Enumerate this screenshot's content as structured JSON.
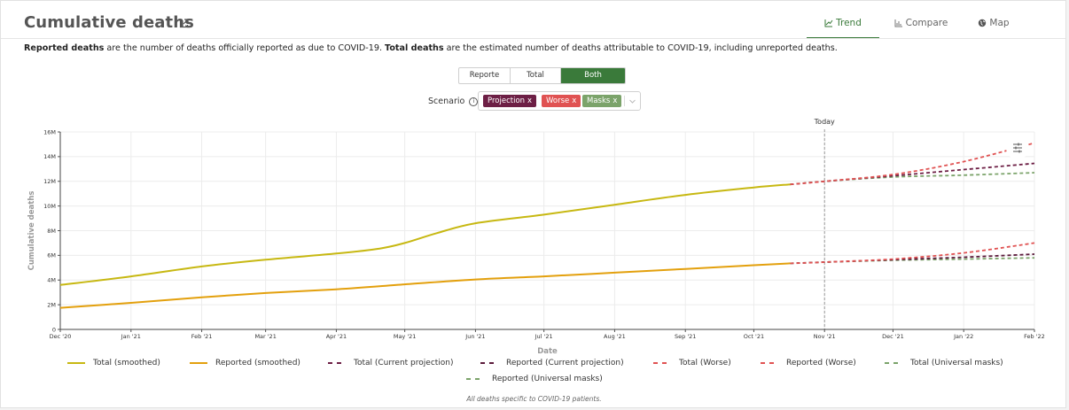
{
  "header": {
    "title": "Cumulative deaths",
    "tabs": [
      {
        "label": "Trend",
        "icon": "trend-icon"
      },
      {
        "label": "Compare",
        "icon": "compare-icon"
      },
      {
        "label": "Map",
        "icon": "globe-icon"
      }
    ]
  },
  "description": {
    "reported_bold": "Reported deaths",
    "reported_text": " are the number of deaths officially reported as due to COVID-19. ",
    "total_bold": "Total deaths",
    "total_text": " are the estimated number of deaths attributable to COVID-19, including unreported deaths."
  },
  "toggle": {
    "options": [
      "Reporte",
      "Total",
      "Both"
    ],
    "selected": "Both"
  },
  "scenario": {
    "label": "Scenario",
    "chips": [
      {
        "label": "Projection",
        "color": "#6d1f45"
      },
      {
        "label": "Worse",
        "color": "#e05252"
      },
      {
        "label": "Masks",
        "color": "#7ba36a"
      }
    ]
  },
  "chart_data": {
    "type": "line",
    "annotation": "Today",
    "xlabel": "Date",
    "ylabel": "Cumulative deaths",
    "x_ticks": [
      "Dec '20",
      "Jan '21",
      "Feb '21",
      "Mar '21",
      "Apr '21",
      "May '21",
      "Jun '21",
      "Jul '21",
      "Aug '21",
      "Sep '21",
      "Oct '21",
      "Nov '21",
      "Dec '21",
      "Jan '22",
      "Feb '22"
    ],
    "y_ticks": [
      "0",
      "2M",
      "4M",
      "6M",
      "8M",
      "10M",
      "12M",
      "14M",
      "16M"
    ],
    "ylim": [
      0,
      16000000
    ],
    "grid": true,
    "legend_position": "bottom",
    "series": [
      {
        "name": "Total (smoothed)",
        "color": "#c7b812",
        "style": "solid",
        "x": [
          "2020-12-01",
          "2021-01-01",
          "2021-02-01",
          "2021-03-01",
          "2021-04-01",
          "2021-04-20",
          "2021-05-01",
          "2021-05-15",
          "2021-06-01",
          "2021-07-01",
          "2021-08-01",
          "2021-09-01",
          "2021-10-01",
          "2021-10-17"
        ],
        "y": [
          3600000,
          4300000,
          5100000,
          5650000,
          6150000,
          6550000,
          7000000,
          7800000,
          8600000,
          9300000,
          10100000,
          10900000,
          11500000,
          11750000
        ]
      },
      {
        "name": "Reported (smoothed)",
        "color": "#e3a00d",
        "style": "solid",
        "x": [
          "2020-12-01",
          "2021-01-01",
          "2021-02-01",
          "2021-03-01",
          "2021-04-01",
          "2021-05-01",
          "2021-06-01",
          "2021-07-01",
          "2021-08-01",
          "2021-09-01",
          "2021-10-01",
          "2021-10-17"
        ],
        "y": [
          1750000,
          2150000,
          2600000,
          2950000,
          3250000,
          3650000,
          4050000,
          4300000,
          4600000,
          4900000,
          5200000,
          5350000
        ]
      },
      {
        "name": "Total (Current projection)",
        "color": "#6d1f45",
        "style": "dashed",
        "x": [
          "2021-10-17",
          "2021-11-01",
          "2021-12-01",
          "2022-01-01",
          "2022-02-01"
        ],
        "y": [
          11750000,
          12000000,
          12450000,
          12950000,
          13450000
        ]
      },
      {
        "name": "Reported (Current projection)",
        "color": "#5b1a3b",
        "style": "dashed",
        "x": [
          "2021-10-17",
          "2021-11-01",
          "2021-12-01",
          "2022-01-01",
          "2022-02-01"
        ],
        "y": [
          5350000,
          5450000,
          5650000,
          5850000,
          6100000
        ]
      },
      {
        "name": "Total (Worse)",
        "color": "#e05252",
        "style": "dashed",
        "x": [
          "2021-10-17",
          "2021-11-01",
          "2021-12-01",
          "2022-01-01",
          "2022-02-01"
        ],
        "y": [
          11750000,
          12000000,
          12550000,
          13600000,
          15100000
        ]
      },
      {
        "name": "Reported (Worse)",
        "color": "#e05252",
        "style": "dashed",
        "x": [
          "2021-10-17",
          "2021-11-01",
          "2021-12-01",
          "2022-01-01",
          "2022-02-01"
        ],
        "y": [
          5350000,
          5450000,
          5700000,
          6200000,
          7000000
        ]
      },
      {
        "name": "Total (Universal masks)",
        "color": "#7ba36a",
        "style": "dashed",
        "x": [
          "2021-10-17",
          "2021-11-01",
          "2021-12-01",
          "2022-01-01",
          "2022-02-01"
        ],
        "y": [
          11750000,
          12000000,
          12350000,
          12500000,
          12700000
        ]
      },
      {
        "name": "Reported (Universal masks)",
        "color": "#7ba36a",
        "style": "dashed",
        "x": [
          "2021-10-17",
          "2021-11-01",
          "2021-12-01",
          "2022-01-01",
          "2022-02-01"
        ],
        "y": [
          5350000,
          5450000,
          5600000,
          5700000,
          5800000
        ]
      }
    ],
    "today": "2021-11-01",
    "xlim": [
      "2020-12-01",
      "2022-02-01"
    ]
  },
  "footnote": "All deaths specific to COVID-19 patients."
}
